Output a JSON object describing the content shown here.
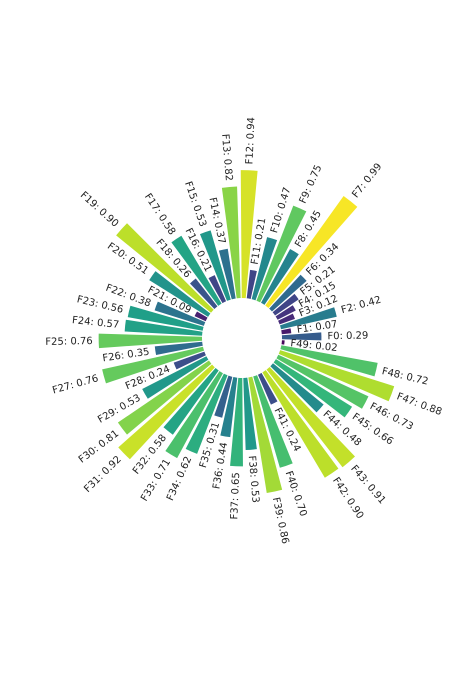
{
  "chart_data": {
    "type": "radial_bar",
    "colormap": "viridis",
    "ylim": [
      0,
      1
    ],
    "values": [
      0.29,
      0.07,
      0.42,
      0.12,
      0.15,
      0.21,
      0.34,
      0.99,
      0.45,
      0.75,
      0.47,
      0.21,
      0.94,
      0.82,
      0.37,
      0.53,
      0.21,
      0.58,
      0.26,
      0.9,
      0.51,
      0.09,
      0.38,
      0.56,
      0.57,
      0.76,
      0.35,
      0.76,
      0.24,
      0.53,
      0.81,
      0.92,
      0.58,
      0.71,
      0.62,
      0.31,
      0.44,
      0.65,
      0.53,
      0.86,
      0.7,
      0.24,
      0.9,
      0.91,
      0.48,
      0.66,
      0.73,
      0.88,
      0.72,
      0.02
    ],
    "value_labels": [
      "F0: 0.29",
      "F1: 0.07",
      "F2: 0.42",
      "F3: 0.12",
      "F4: 0.15",
      "F5: 0.21",
      "F6: 0.34",
      "F7: 0.99",
      "F8: 0.45",
      "F9: 0.75",
      "F10: 0.47",
      "F11: 0.21",
      "F12: 0.94",
      "F13: 0.82",
      "F14: 0.37",
      "F15: 0.53",
      "F16: 0.21",
      "F17: 0.58",
      "F18: 0.26",
      "F19: 0.90",
      "F20: 0.51",
      "F21: 0.09",
      "F22: 0.38",
      "F23: 0.56",
      "F24: 0.57",
      "F25: 0.76",
      "F26: 0.35",
      "F27: 0.76",
      "F28: 0.24",
      "F29: 0.53",
      "F30: 0.81",
      "F31: 0.92",
      "F32: 0.58",
      "F33: 0.71",
      "F34: 0.62",
      "F35: 0.31",
      "F36: 0.44",
      "F37: 0.65",
      "F38: 0.53",
      "F39: 0.86",
      "F40: 0.70",
      "F41: 0.24",
      "F42: 0.90",
      "F43: 0.91",
      "F44: 0.48",
      "F45: 0.66",
      "F46: 0.73",
      "F47: 0.88",
      "F48: 0.72",
      "F49: 0.02"
    ]
  }
}
